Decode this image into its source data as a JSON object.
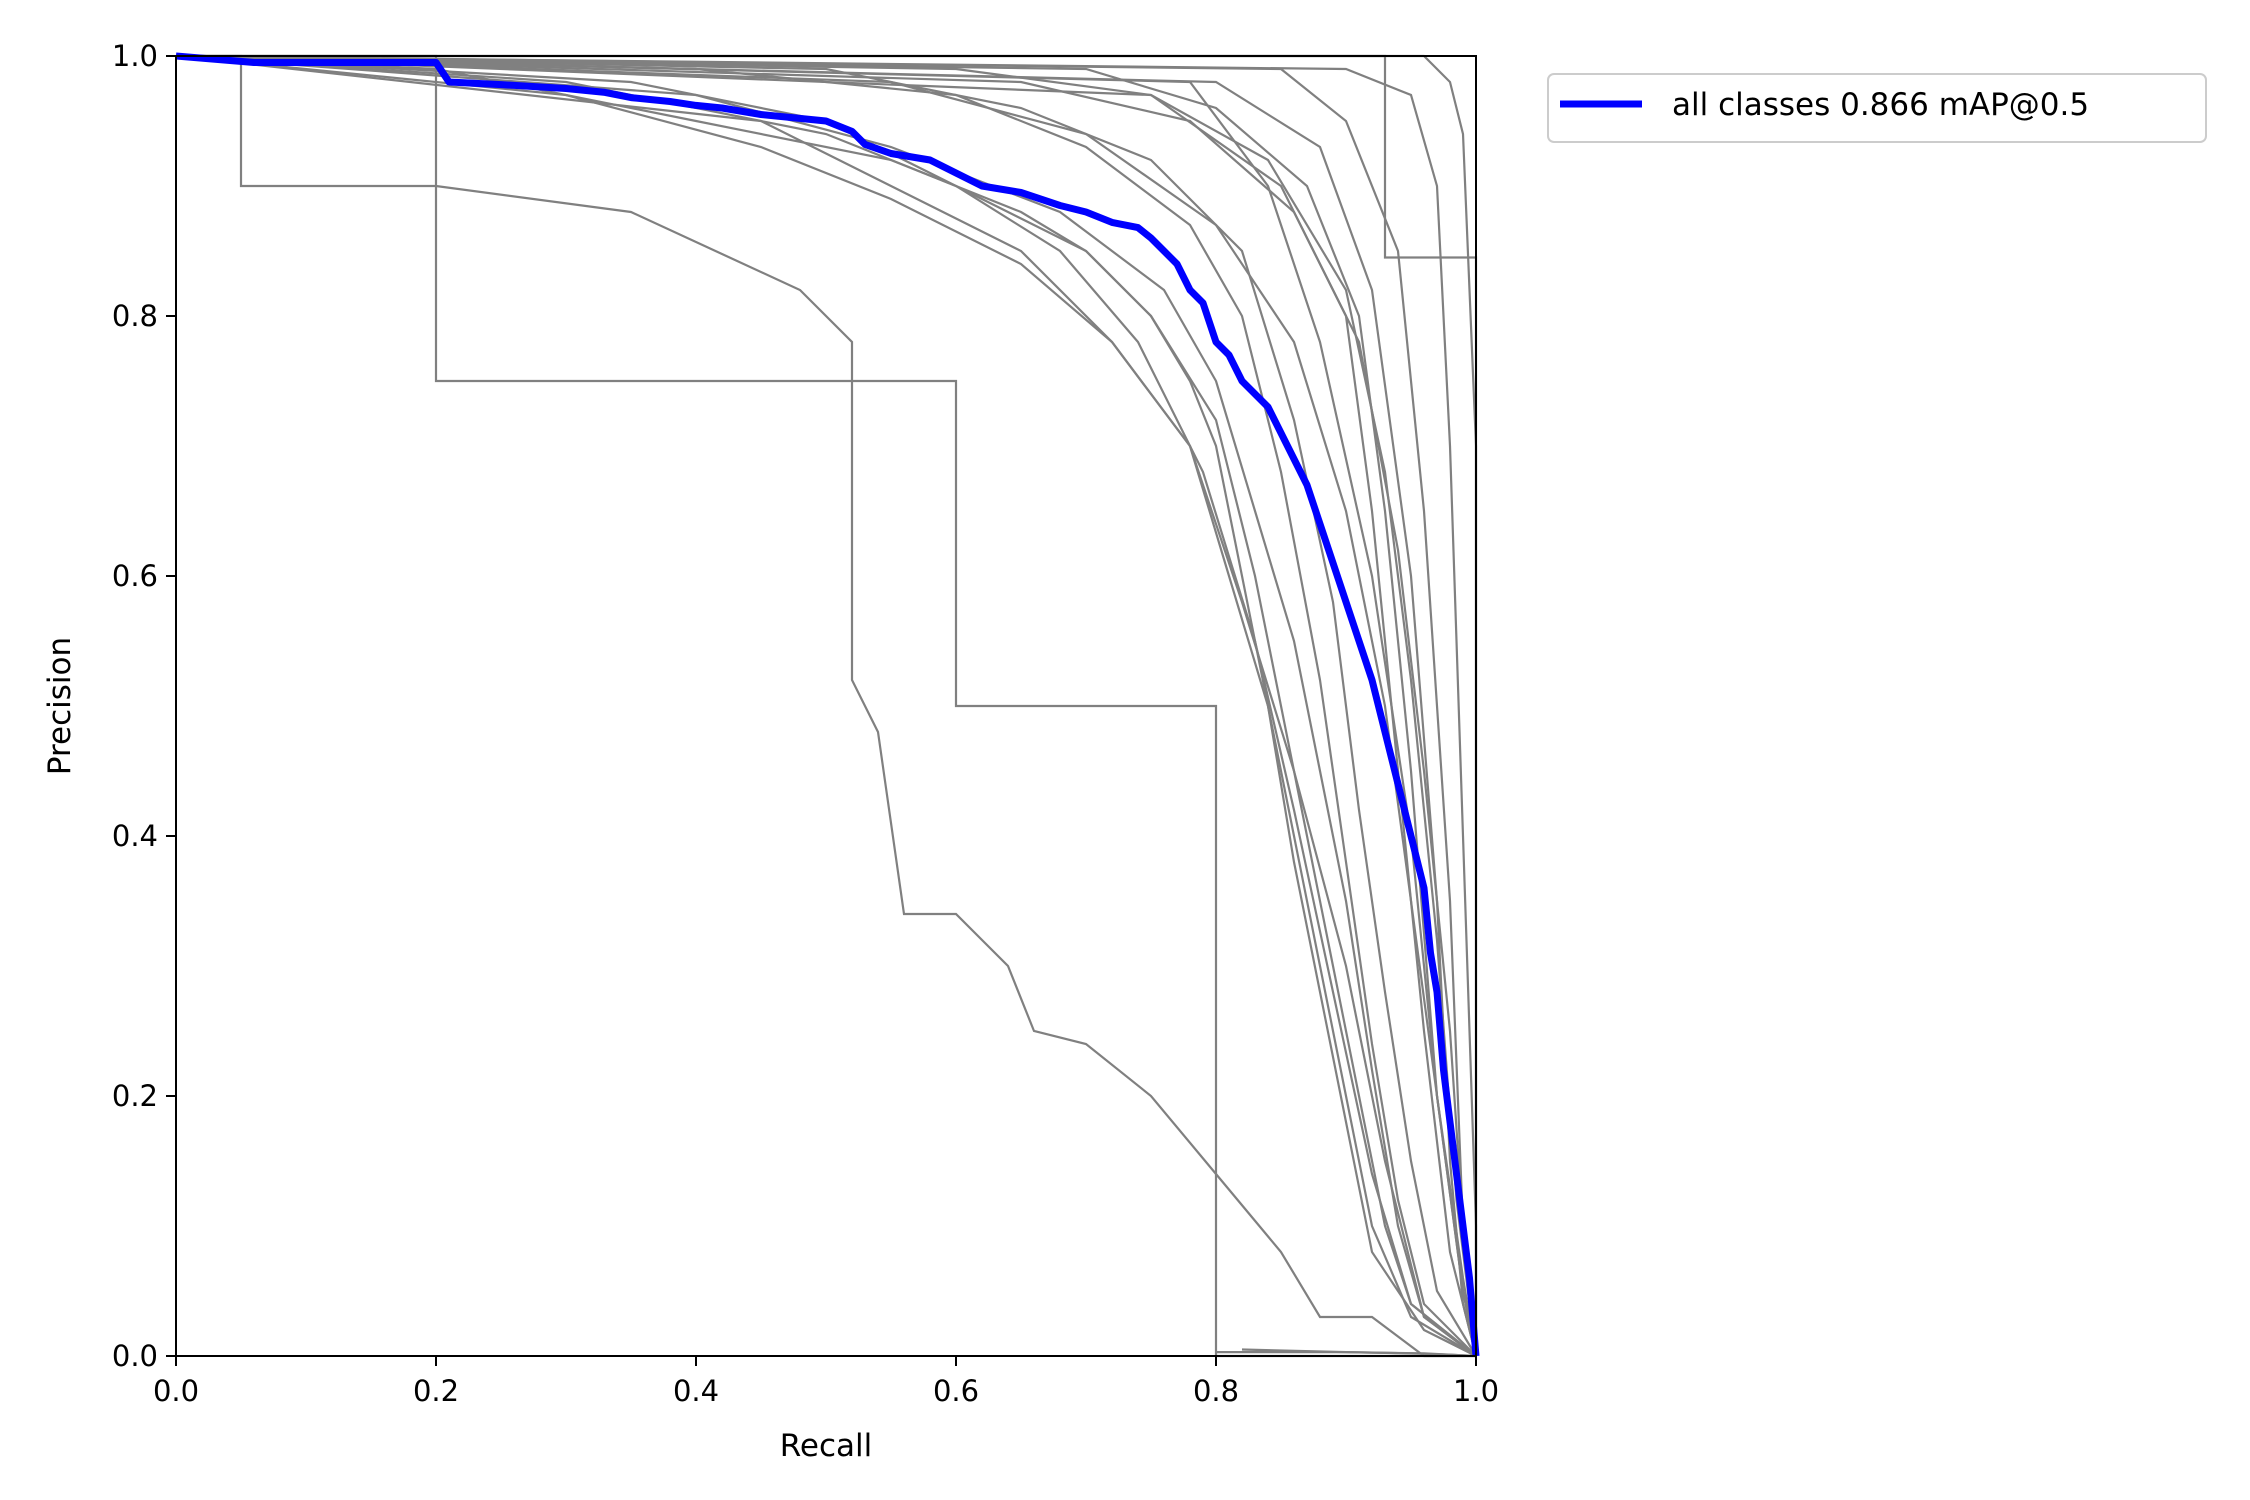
{
  "chart_data": {
    "type": "line",
    "title": "",
    "xlabel": "Recall",
    "ylabel": "Precision",
    "xlim": [
      0,
      1
    ],
    "ylim": [
      0,
      1
    ],
    "grid": false,
    "legend_position": "outside top-right",
    "x_ticks": [
      "0.0",
      "0.2",
      "0.4",
      "0.6",
      "0.8",
      "1.0"
    ],
    "y_ticks": [
      "0.0",
      "0.2",
      "0.4",
      "0.6",
      "0.8",
      "1.0"
    ],
    "series_color": "#808080",
    "highlight_color": "#0000ff",
    "series": [
      {
        "x": [
          0,
          0.2,
          0.2,
          0.35,
          0.35,
          0.5,
          0.52,
          0.52,
          0.6,
          0.6,
          0.8,
          0.8,
          1.0
        ],
        "y": [
          1,
          1,
          0.75,
          0.75,
          0.75,
          0.75,
          0.75,
          0.75,
          0.75,
          0.5,
          0.5,
          0,
          0
        ]
      },
      {
        "x": [
          0,
          0.05,
          0.05,
          0.2,
          0.35,
          0.48,
          0.52,
          0.52,
          0.53,
          0.54,
          0.54,
          0.56,
          0.56,
          0.6,
          0.62,
          0.64,
          0.66,
          0.7,
          0.75,
          0.8,
          0.85,
          0.88,
          0.92,
          0.96,
          1.0
        ],
        "y": [
          1,
          1,
          0.9,
          0.9,
          0.88,
          0.82,
          0.78,
          0.52,
          0.5,
          0.48,
          0.48,
          0.34,
          0.34,
          0.34,
          0.32,
          0.3,
          0.25,
          0.24,
          0.2,
          0.14,
          0.08,
          0.03,
          0.03,
          0.0,
          0
        ]
      },
      {
        "x": [
          0,
          0.2,
          0.4,
          0.55,
          0.65,
          0.7,
          0.75,
          0.78,
          0.8,
          0.82,
          0.84,
          0.86,
          0.88,
          0.9,
          0.92,
          0.95,
          1.0
        ],
        "y": [
          1,
          0.99,
          0.95,
          0.92,
          0.88,
          0.85,
          0.8,
          0.75,
          0.7,
          0.6,
          0.5,
          0.4,
          0.3,
          0.2,
          0.1,
          0.03,
          0
        ]
      },
      {
        "x": [
          0,
          0.3,
          0.5,
          0.6,
          0.7,
          0.75,
          0.8,
          0.83,
          0.85,
          0.87,
          0.89,
          0.91,
          0.93,
          0.95,
          1.0
        ],
        "y": [
          1,
          0.98,
          0.94,
          0.9,
          0.85,
          0.8,
          0.72,
          0.6,
          0.5,
          0.4,
          0.3,
          0.2,
          0.1,
          0.04,
          0
        ]
      },
      {
        "x": [
          0,
          0.3,
          0.45,
          0.55,
          0.65,
          0.72,
          0.78,
          0.81,
          0.84,
          0.86,
          0.88,
          0.9,
          0.92,
          0.96,
          1.0
        ],
        "y": [
          1,
          0.97,
          0.93,
          0.89,
          0.84,
          0.78,
          0.7,
          0.6,
          0.5,
          0.38,
          0.28,
          0.18,
          0.08,
          0.02,
          0
        ]
      },
      {
        "x": [
          0,
          0.4,
          0.6,
          0.7,
          0.78,
          0.82,
          0.85,
          0.88,
          0.9,
          0.92,
          0.94,
          0.96,
          1.0
        ],
        "y": [
          1,
          0.99,
          0.97,
          0.93,
          0.87,
          0.8,
          0.68,
          0.52,
          0.38,
          0.24,
          0.12,
          0.04,
          0
        ]
      },
      {
        "x": [
          0,
          0.5,
          0.65,
          0.75,
          0.82,
          0.86,
          0.89,
          0.91,
          0.93,
          0.95,
          0.97,
          1.0
        ],
        "y": [
          1,
          0.99,
          0.96,
          0.92,
          0.85,
          0.72,
          0.58,
          0.42,
          0.28,
          0.15,
          0.05,
          0
        ]
      },
      {
        "x": [
          0,
          0.6,
          0.75,
          0.85,
          0.9,
          0.92,
          0.94,
          0.96,
          0.98,
          1.0
        ],
        "y": [
          1,
          0.99,
          0.97,
          0.9,
          0.8,
          0.65,
          0.45,
          0.25,
          0.08,
          0
        ]
      },
      {
        "x": [
          0,
          0.7,
          0.8,
          0.87,
          0.91,
          0.93,
          0.95,
          0.97,
          0.99,
          1.0
        ],
        "y": [
          1,
          0.99,
          0.96,
          0.9,
          0.8,
          0.65,
          0.45,
          0.2,
          0.05,
          0
        ]
      },
      {
        "x": [
          0,
          0.8,
          0.88,
          0.92,
          0.95,
          0.97,
          0.98,
          0.99,
          1.0
        ],
        "y": [
          1,
          0.98,
          0.93,
          0.82,
          0.6,
          0.35,
          0.15,
          0.04,
          0
        ]
      },
      {
        "x": [
          0,
          0.85,
          0.9,
          0.94,
          0.96,
          0.98,
          0.99,
          1.0
        ],
        "y": [
          1,
          0.99,
          0.95,
          0.85,
          0.65,
          0.35,
          0.1,
          0
        ]
      },
      {
        "x": [
          0,
          0.9,
          0.95,
          0.97,
          0.98,
          0.99,
          1.0,
          1.0
        ],
        "y": [
          1,
          0.99,
          0.97,
          0.9,
          0.7,
          0.4,
          0.1,
          0
        ]
      },
      {
        "x": [
          0,
          0.93,
          0.93,
          1.0,
          1.0
        ],
        "y": [
          1,
          1,
          0.845,
          0.845,
          0
        ]
      },
      {
        "x": [
          0,
          0.96,
          0.98,
          0.99,
          1.0,
          1.0
        ],
        "y": [
          1,
          1,
          0.98,
          0.94,
          0.7,
          0
        ]
      },
      {
        "x": [
          0,
          0.45,
          0.55,
          0.65,
          0.72,
          0.78,
          0.82,
          0.86,
          0.9,
          0.93,
          0.96,
          1.0
        ],
        "y": [
          1,
          0.95,
          0.9,
          0.85,
          0.78,
          0.7,
          0.58,
          0.45,
          0.3,
          0.15,
          0.03,
          0
        ]
      },
      {
        "x": [
          0,
          0.35,
          0.5,
          0.6,
          0.68,
          0.74,
          0.79,
          0.83,
          0.86,
          0.89,
          0.92,
          0.95,
          1.0
        ],
        "y": [
          1,
          0.98,
          0.95,
          0.9,
          0.85,
          0.78,
          0.68,
          0.55,
          0.42,
          0.28,
          0.14,
          0.04,
          0
        ]
      },
      {
        "x": [
          0,
          0.55,
          0.7,
          0.8,
          0.86,
          0.9,
          0.93,
          0.95,
          0.97,
          0.99,
          1.0
        ],
        "y": [
          1,
          0.98,
          0.94,
          0.87,
          0.78,
          0.65,
          0.5,
          0.35,
          0.2,
          0.05,
          0
        ]
      },
      {
        "x": [
          0,
          0.65,
          0.78,
          0.86,
          0.91,
          0.94,
          0.96,
          0.98,
          0.99,
          1.0
        ],
        "y": [
          1,
          0.98,
          0.95,
          0.88,
          0.78,
          0.62,
          0.45,
          0.25,
          0.1,
          0
        ]
      },
      {
        "x": [
          0,
          0.75,
          0.84,
          0.9,
          0.93,
          0.95,
          0.97,
          0.985,
          1.0
        ],
        "y": [
          1,
          0.97,
          0.92,
          0.82,
          0.68,
          0.52,
          0.32,
          0.12,
          0
        ]
      },
      {
        "x": [
          0,
          0.78,
          0.84,
          0.88,
          0.92,
          0.95,
          0.97,
          0.99,
          1.0
        ],
        "y": [
          1,
          0.98,
          0.9,
          0.78,
          0.6,
          0.4,
          0.2,
          0.06,
          0
        ]
      },
      {
        "x": [
          0,
          0.4,
          0.55,
          0.68,
          0.76,
          0.8,
          0.83,
          0.86,
          0.88,
          0.9,
          0.92,
          0.94,
          0.96,
          1.0
        ],
        "y": [
          1,
          0.97,
          0.93,
          0.88,
          0.82,
          0.75,
          0.65,
          0.55,
          0.45,
          0.35,
          0.22,
          0.1,
          0.03,
          0
        ]
      },
      {
        "x": [
          0.8,
          0.9,
          0.96,
          1.0
        ],
        "y": [
          0.003,
          0.003,
          0.002,
          0
        ]
      },
      {
        "x": [
          0.82,
          0.9,
          0.95,
          0.98,
          1.0
        ],
        "y": [
          0.005,
          0.003,
          0.002,
          0.001,
          0
        ]
      }
    ],
    "highlight": {
      "name": "all classes 0.866 mAP@0.5",
      "x": [
        0,
        0.06,
        0.15,
        0.2,
        0.21,
        0.25,
        0.3,
        0.33,
        0.35,
        0.38,
        0.4,
        0.42,
        0.45,
        0.5,
        0.52,
        0.53,
        0.55,
        0.58,
        0.6,
        0.62,
        0.65,
        0.68,
        0.7,
        0.72,
        0.74,
        0.75,
        0.76,
        0.77,
        0.78,
        0.79,
        0.8,
        0.81,
        0.82,
        0.84,
        0.85,
        0.86,
        0.87,
        0.88,
        0.89,
        0.9,
        0.91,
        0.92,
        0.93,
        0.94,
        0.95,
        0.96,
        0.965,
        0.97,
        0.975,
        0.98,
        0.985,
        0.99,
        0.995,
        1.0
      ],
      "y": [
        1,
        0.995,
        0.995,
        0.995,
        0.98,
        0.978,
        0.975,
        0.972,
        0.968,
        0.965,
        0.962,
        0.96,
        0.955,
        0.95,
        0.942,
        0.932,
        0.925,
        0.92,
        0.91,
        0.9,
        0.895,
        0.885,
        0.88,
        0.872,
        0.868,
        0.86,
        0.85,
        0.84,
        0.82,
        0.81,
        0.78,
        0.77,
        0.75,
        0.73,
        0.71,
        0.69,
        0.67,
        0.64,
        0.61,
        0.58,
        0.55,
        0.52,
        0.48,
        0.44,
        0.4,
        0.36,
        0.31,
        0.28,
        0.22,
        0.18,
        0.14,
        0.1,
        0.06,
        0
      ]
    }
  }
}
